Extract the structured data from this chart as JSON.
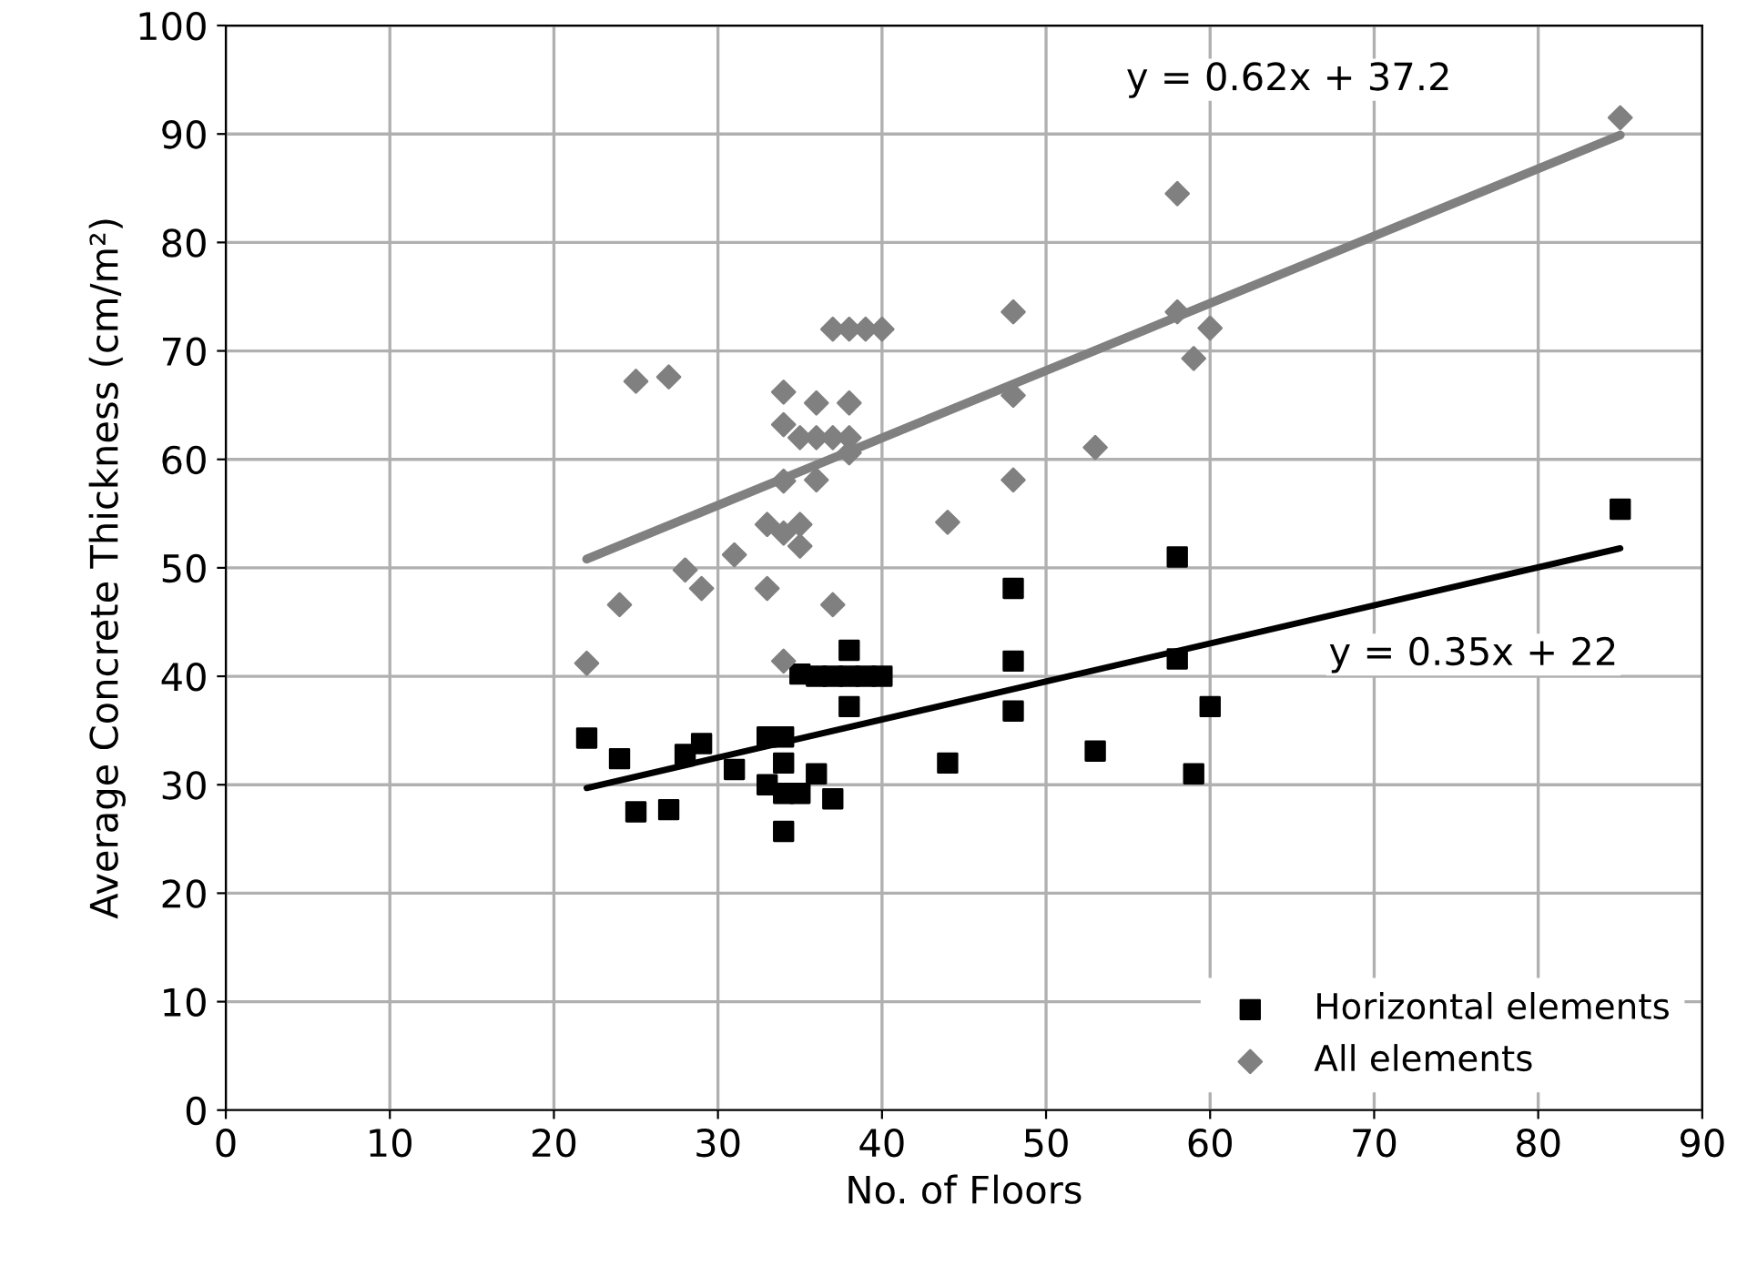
{
  "chart_data": {
    "type": "scatter",
    "xlabel": "No. of Floors",
    "ylabel": "Average Concrete Thickness (cm/m²)",
    "xlim": [
      0,
      90
    ],
    "ylim": [
      0,
      100
    ],
    "xticks": [
      0,
      10,
      20,
      30,
      40,
      50,
      60,
      70,
      80,
      90
    ],
    "yticks": [
      0,
      10,
      20,
      30,
      40,
      50,
      60,
      70,
      80,
      90,
      100
    ],
    "grid": true,
    "legend": "bottom right",
    "series": [
      {
        "name": "Horizontal elements",
        "color": "#000000",
        "marker": "square",
        "x": [
          22,
          24,
          25,
          27,
          28,
          29,
          31,
          33,
          34,
          34,
          34,
          34,
          33,
          35,
          36,
          37,
          35,
          36,
          37,
          38,
          39,
          40,
          38,
          38,
          44,
          48,
          48,
          48,
          53,
          58,
          58,
          60,
          59,
          85
        ],
        "values": [
          34.3,
          32.4,
          27.5,
          27.7,
          32.8,
          33.8,
          31.4,
          34.4,
          34.4,
          32,
          29.2,
          25.7,
          30,
          29.2,
          31,
          28.7,
          40.2,
          40,
          40,
          40,
          40,
          40,
          42.4,
          37.2,
          32,
          48.1,
          41.4,
          36.8,
          33.1,
          51,
          41.6,
          37.2,
          31,
          55.4
        ]
      },
      {
        "name": "All elements",
        "color": "#808080",
        "marker": "diamond",
        "x": [
          22,
          24,
          25,
          27,
          28,
          29,
          31,
          33,
          33,
          34,
          35,
          35,
          34,
          37,
          34,
          34,
          35,
          36,
          37,
          38,
          38,
          36,
          38,
          36,
          34,
          37,
          38,
          39,
          40,
          44,
          48,
          48,
          48,
          53,
          58,
          58,
          60,
          59,
          85
        ],
        "values": [
          41.2,
          46.6,
          67.2,
          67.6,
          49.8,
          48.1,
          51.2,
          48.1,
          54,
          53.2,
          54,
          52,
          41.4,
          46.6,
          66.2,
          63.2,
          62,
          62,
          62,
          62,
          60.6,
          65.2,
          65.2,
          58.1,
          58,
          72,
          72,
          72,
          72,
          54.2,
          73.6,
          65.9,
          58.1,
          61.1,
          84.5,
          73.6,
          72.1,
          69.3,
          91.5
        ]
      },
      {
        "type": "line",
        "color": "#000000",
        "x": [
          22,
          85
        ],
        "values": [
          29.7,
          51.8
        ]
      },
      {
        "type": "line",
        "color": "#808080",
        "x": [
          22,
          85
        ],
        "values": [
          50.8,
          89.9
        ]
      }
    ],
    "annotations": [
      "y = 0.62x + 37.2",
      "y = 0.35x + 22"
    ]
  }
}
